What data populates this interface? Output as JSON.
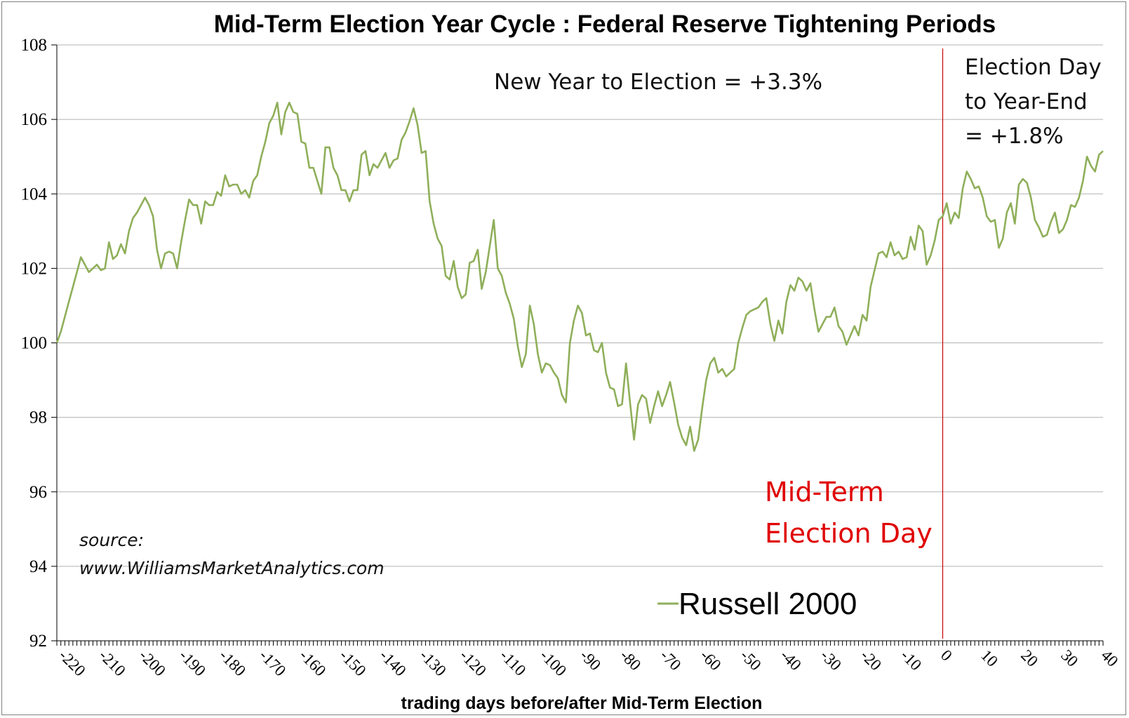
{
  "chart_data": {
    "type": "line",
    "title": "Mid-Term Election Year Cycle : Federal Reserve Tightening Periods",
    "xlabel": "trading days before/after Mid-Term Election",
    "ylabel": "",
    "xlim": [
      -221,
      40
    ],
    "ylim": [
      92,
      108
    ],
    "y_ticks": [
      92,
      94,
      96,
      98,
      100,
      102,
      104,
      106,
      108
    ],
    "x_ticks": [
      -220,
      -210,
      -200,
      -190,
      -180,
      -170,
      -160,
      -150,
      -140,
      -130,
      -120,
      -110,
      -100,
      -90,
      -80,
      -70,
      -60,
      -50,
      -40,
      -30,
      -20,
      -10,
      0,
      10,
      20,
      30,
      40
    ],
    "grid": "horizontal",
    "legend_position": "bottom-center",
    "colors": {
      "series": "#8faf5a",
      "marker_line": "#cc0000",
      "annotation_red": "#e00000",
      "gridline": "#b3b3b3"
    },
    "series": [
      {
        "name": "Russell 2000",
        "x": [
          -221,
          -220,
          -219,
          -218,
          -217,
          -216,
          -215,
          -214,
          -213,
          -212,
          -211,
          -210,
          -209,
          -208,
          -207,
          -206,
          -205,
          -204,
          -203,
          -202,
          -201,
          -200,
          -199,
          -198,
          -197,
          -196,
          -195,
          -194,
          -193,
          -192,
          -191,
          -190,
          -189,
          -188,
          -187,
          -186,
          -185,
          -184,
          -183,
          -182,
          -181,
          -180,
          -179,
          -178,
          -177,
          -176,
          -175,
          -174,
          -173,
          -172,
          -171,
          -170,
          -169,
          -168,
          -167,
          -166,
          -165,
          -164,
          -163,
          -162,
          -161,
          -160,
          -159,
          -158,
          -157,
          -156,
          -155,
          -154,
          -153,
          -152,
          -151,
          -150,
          -149,
          -148,
          -147,
          -146,
          -145,
          -144,
          -143,
          -142,
          -141,
          -140,
          -139,
          -138,
          -137,
          -136,
          -135,
          -134,
          -133,
          -132,
          -131,
          -130,
          -129,
          -128,
          -127,
          -126,
          -125,
          -124,
          -123,
          -122,
          -121,
          -120,
          -119,
          -118,
          -117,
          -116,
          -115,
          -114,
          -113,
          -112,
          -111,
          -110,
          -109,
          -108,
          -107,
          -106,
          -105,
          -104,
          -103,
          -102,
          -101,
          -100,
          -99,
          -98,
          -97,
          -96,
          -95,
          -94,
          -93,
          -92,
          -91,
          -90,
          -89,
          -88,
          -87,
          -86,
          -85,
          -84,
          -83,
          -82,
          -81,
          -80,
          -79,
          -78,
          -77,
          -76,
          -75,
          -74,
          -73,
          -72,
          -71,
          -70,
          -69,
          -68,
          -67,
          -66,
          -65,
          -64,
          -63,
          -62,
          -61,
          -60,
          -59,
          -58,
          -57,
          -56,
          -55,
          -54,
          -53,
          -52,
          -51,
          -50,
          -49,
          -48,
          -47,
          -46,
          -45,
          -44,
          -43,
          -42,
          -41,
          -40,
          -39,
          -38,
          -37,
          -36,
          -35,
          -34,
          -33,
          -32,
          -31,
          -30,
          -29,
          -28,
          -27,
          -26,
          -25,
          -24,
          -23,
          -22,
          -21,
          -20,
          -19,
          -18,
          -17,
          -16,
          -15,
          -14,
          -13,
          -12,
          -11,
          -10,
          -9,
          -8,
          -7,
          -6,
          -5,
          -4,
          -3,
          -2,
          -1,
          0,
          1,
          2,
          3,
          4,
          5,
          6,
          7,
          8,
          9,
          10,
          11,
          12,
          13,
          14,
          15,
          16,
          17,
          18,
          19,
          20,
          21,
          22,
          23,
          24,
          25,
          26,
          27,
          28,
          29,
          30,
          31,
          32,
          33,
          34,
          35,
          36,
          37,
          38,
          39,
          40
        ],
        "values": [
          100.0,
          100.3,
          100.7,
          101.1,
          101.5,
          101.9,
          102.3,
          102.1,
          101.9,
          102.0,
          102.1,
          101.95,
          102.0,
          102.7,
          102.25,
          102.35,
          102.65,
          102.4,
          103.0,
          103.35,
          103.5,
          103.7,
          103.9,
          103.7,
          103.4,
          102.5,
          102.0,
          102.4,
          102.45,
          102.4,
          102.0,
          102.7,
          103.3,
          103.85,
          103.7,
          103.7,
          103.2,
          103.8,
          103.7,
          103.7,
          104.05,
          103.95,
          104.5,
          104.2,
          104.25,
          104.25,
          104.0,
          104.1,
          103.9,
          104.35,
          104.5,
          105.0,
          105.4,
          105.9,
          106.1,
          106.45,
          105.6,
          106.2,
          106.45,
          106.2,
          106.15,
          105.4,
          105.35,
          104.7,
          104.7,
          104.35,
          104.0,
          105.25,
          105.25,
          104.7,
          104.5,
          104.1,
          104.1,
          103.8,
          104.1,
          104.1,
          105.05,
          105.15,
          104.5,
          104.8,
          104.7,
          104.9,
          105.1,
          104.7,
          104.9,
          104.95,
          105.45,
          105.65,
          105.95,
          106.3,
          105.85,
          105.1,
          105.15,
          103.8,
          103.2,
          102.8,
          102.6,
          101.8,
          101.7,
          102.2,
          101.5,
          101.2,
          101.3,
          102.15,
          102.2,
          102.5,
          101.45,
          101.9,
          102.6,
          103.3,
          102.0,
          101.8,
          101.35,
          101.05,
          100.65,
          99.9,
          99.35,
          99.7,
          101.0,
          100.5,
          99.7,
          99.2,
          99.45,
          99.4,
          99.2,
          99.05,
          98.6,
          98.4,
          100.0,
          100.6,
          101.0,
          100.8,
          100.2,
          100.25,
          99.8,
          99.75,
          100.0,
          99.2,
          98.8,
          98.75,
          98.3,
          98.35,
          99.45,
          98.4,
          97.4,
          98.35,
          98.6,
          98.5,
          97.85,
          98.3,
          98.7,
          98.3,
          98.6,
          98.95,
          98.4,
          97.8,
          97.45,
          97.25,
          97.75,
          97.1,
          97.4,
          98.25,
          99.0,
          99.45,
          99.6,
          99.2,
          99.3,
          99.1,
          99.2,
          99.3,
          100.0,
          100.4,
          100.75,
          100.85,
          100.9,
          100.95,
          101.1,
          101.2,
          100.5,
          100.05,
          100.6,
          100.25,
          101.1,
          101.55,
          101.4,
          101.75,
          101.65,
          101.4,
          101.6,
          100.9,
          100.3,
          100.5,
          100.7,
          100.7,
          100.95,
          100.45,
          100.3,
          99.95,
          100.2,
          100.45,
          100.2,
          100.75,
          100.6,
          101.5,
          101.95,
          102.4,
          102.45,
          102.3,
          102.7,
          102.35,
          102.45,
          102.25,
          102.3,
          102.85,
          102.5,
          103.15,
          103.0,
          102.1,
          102.35,
          102.75,
          103.3,
          103.4,
          103.75,
          103.2,
          103.5,
          103.35,
          104.15,
          104.6,
          104.4,
          104.15,
          104.2,
          103.9,
          103.4,
          103.25,
          103.3,
          102.55,
          102.8,
          103.5,
          103.75,
          103.2,
          104.25,
          104.4,
          104.3,
          103.9,
          103.3,
          103.1,
          102.85,
          102.9,
          103.25,
          103.5,
          102.95,
          103.05,
          103.3,
          103.7,
          103.65,
          103.9,
          104.35,
          105.0,
          104.75,
          104.6,
          105.05,
          105.15
        ]
      }
    ],
    "annotations": {
      "new_year_to_election": "New Year to Election = +3.3%",
      "election_day_line1": "Election Day",
      "election_day_line2": "to Year-End",
      "election_day_line3": "= +1.8%",
      "midterm_line1": "Mid-Term",
      "midterm_line2": "Election Day",
      "source_line1": "source:",
      "source_line2": "www.WilliamsMarketAnalytics.com"
    }
  }
}
